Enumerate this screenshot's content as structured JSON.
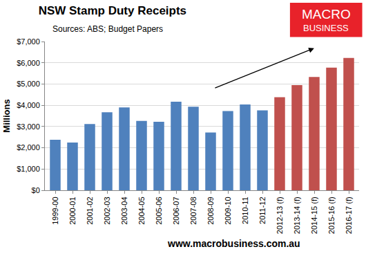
{
  "chart_data": {
    "type": "bar",
    "title": "NSW Stamp Duty Receipts",
    "subtitle": "Sources: ABS; Budget Papers",
    "y_label": "Millions",
    "categories": [
      "1999-00",
      "2000-01",
      "2001-02",
      "2002-03",
      "2003-04",
      "2004-05",
      "2005-06",
      "2006-07",
      "2007-08",
      "2008-09",
      "2009-10",
      "2010-11",
      "2011-12",
      "2012-13 (f)",
      "2013-14 (f)",
      "2014-15 (f)",
      "2015-16 (f)",
      "2016-17 (f)"
    ],
    "values": [
      2380,
      2250,
      3120,
      3670,
      3900,
      3260,
      3220,
      4170,
      3930,
      2720,
      3730,
      4040,
      3760,
      4380,
      4950,
      5330,
      5770,
      6230
    ],
    "colors": [
      "#4f81bd",
      "#4f81bd",
      "#4f81bd",
      "#4f81bd",
      "#4f81bd",
      "#4f81bd",
      "#4f81bd",
      "#4f81bd",
      "#4f81bd",
      "#4f81bd",
      "#4f81bd",
      "#4f81bd",
      "#4f81bd",
      "#c0504d",
      "#c0504d",
      "#c0504d",
      "#c0504d",
      "#c0504d"
    ],
    "ylim": [
      0,
      7000
    ],
    "yticks": [
      {
        "value": 0,
        "label": "$0"
      },
      {
        "value": 1000,
        "label": "$1,000"
      },
      {
        "value": 2000,
        "label": "$2,000"
      },
      {
        "value": 3000,
        "label": "$3,000"
      },
      {
        "value": 4000,
        "label": "$4,000"
      },
      {
        "value": 5000,
        "label": "$5,000"
      },
      {
        "value": 6000,
        "label": "$6,000"
      },
      {
        "value": 7000,
        "label": "$7,000"
      }
    ],
    "grid": true,
    "logo": {
      "line1": "MACRO",
      "line2": "BUSINESS"
    },
    "footer": "www.macrobusiness.com.au"
  }
}
